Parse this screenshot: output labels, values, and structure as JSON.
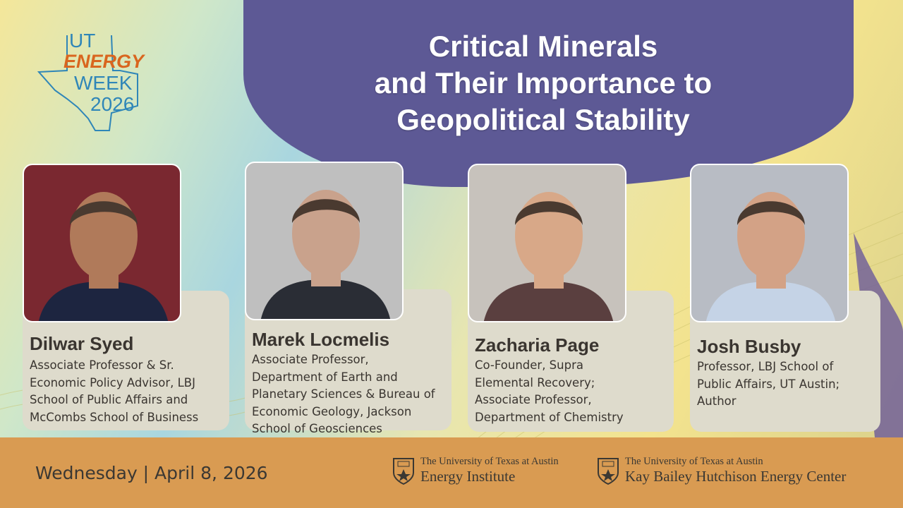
{
  "logo": {
    "line1": "UT",
    "line2": "ENERGY",
    "line3": "WEEK",
    "line4": "2026"
  },
  "title": [
    "Critical Minerals",
    "and Their Importance to",
    "Geopolitical Stability"
  ],
  "speakers": [
    {
      "name": "Dilwar Syed",
      "description": [
        "Associate Professor & Sr.",
        "Economic Policy Advisor, LBJ",
        "School of Public Affairs and",
        "McCombs School of Business"
      ]
    },
    {
      "name": "Marek Locmelis",
      "description": [
        "Associate Professor,",
        "Department of Earth and",
        "Planetary Sciences & Bureau of",
        "Economic Geology, Jackson",
        "School of Geosciences"
      ]
    },
    {
      "name": "Zacharia Page",
      "description": [
        "Co-Founder, Supra",
        "Elemental Recovery;",
        "Associate Professor,",
        "Department of Chemistry"
      ]
    },
    {
      "name": "Josh Busby",
      "description": [
        " Professor, LBJ School of",
        "Public Affairs, UT Austin;",
        "Author"
      ]
    }
  ],
  "footer": {
    "date": "Wednesday | April 8, 2026",
    "institutions": [
      {
        "line1": "The University of Texas at Austin",
        "line2": "Energy Institute"
      },
      {
        "line1": "The University of Texas at Austin",
        "line2": "Kay Bailey Hutchison Energy Center"
      }
    ]
  }
}
